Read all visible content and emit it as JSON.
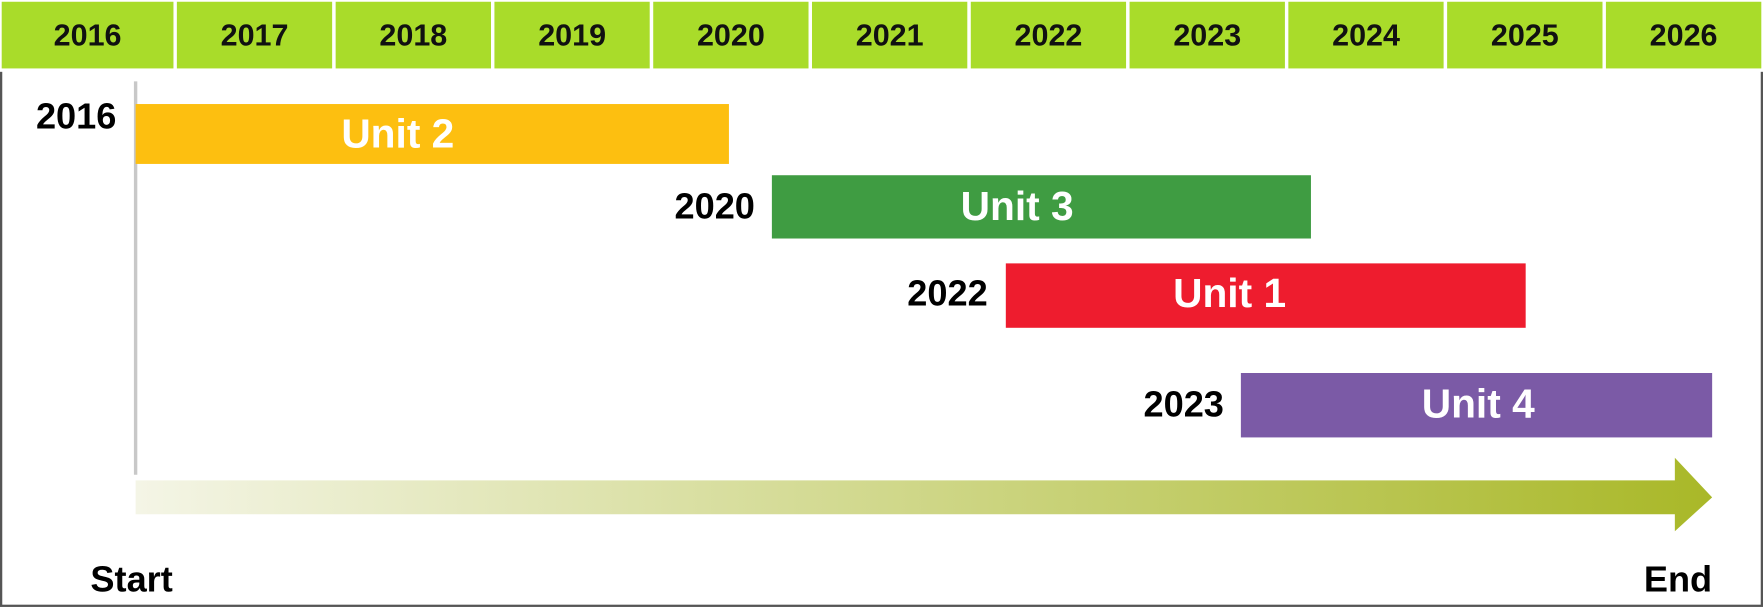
{
  "header": {
    "years": [
      "2016",
      "2017",
      "2018",
      "2019",
      "2020",
      "2021",
      "2022",
      "2023",
      "2024",
      "2025",
      "2026"
    ]
  },
  "tasks": [
    {
      "start": "2016",
      "label": "Unit 2"
    },
    {
      "start": "2020",
      "label": "Unit 3"
    },
    {
      "start": "2022",
      "label": "Unit 1"
    },
    {
      "start": "2023",
      "label": "Unit 4"
    }
  ],
  "axis": {
    "start": "Start",
    "end": "End"
  }
}
